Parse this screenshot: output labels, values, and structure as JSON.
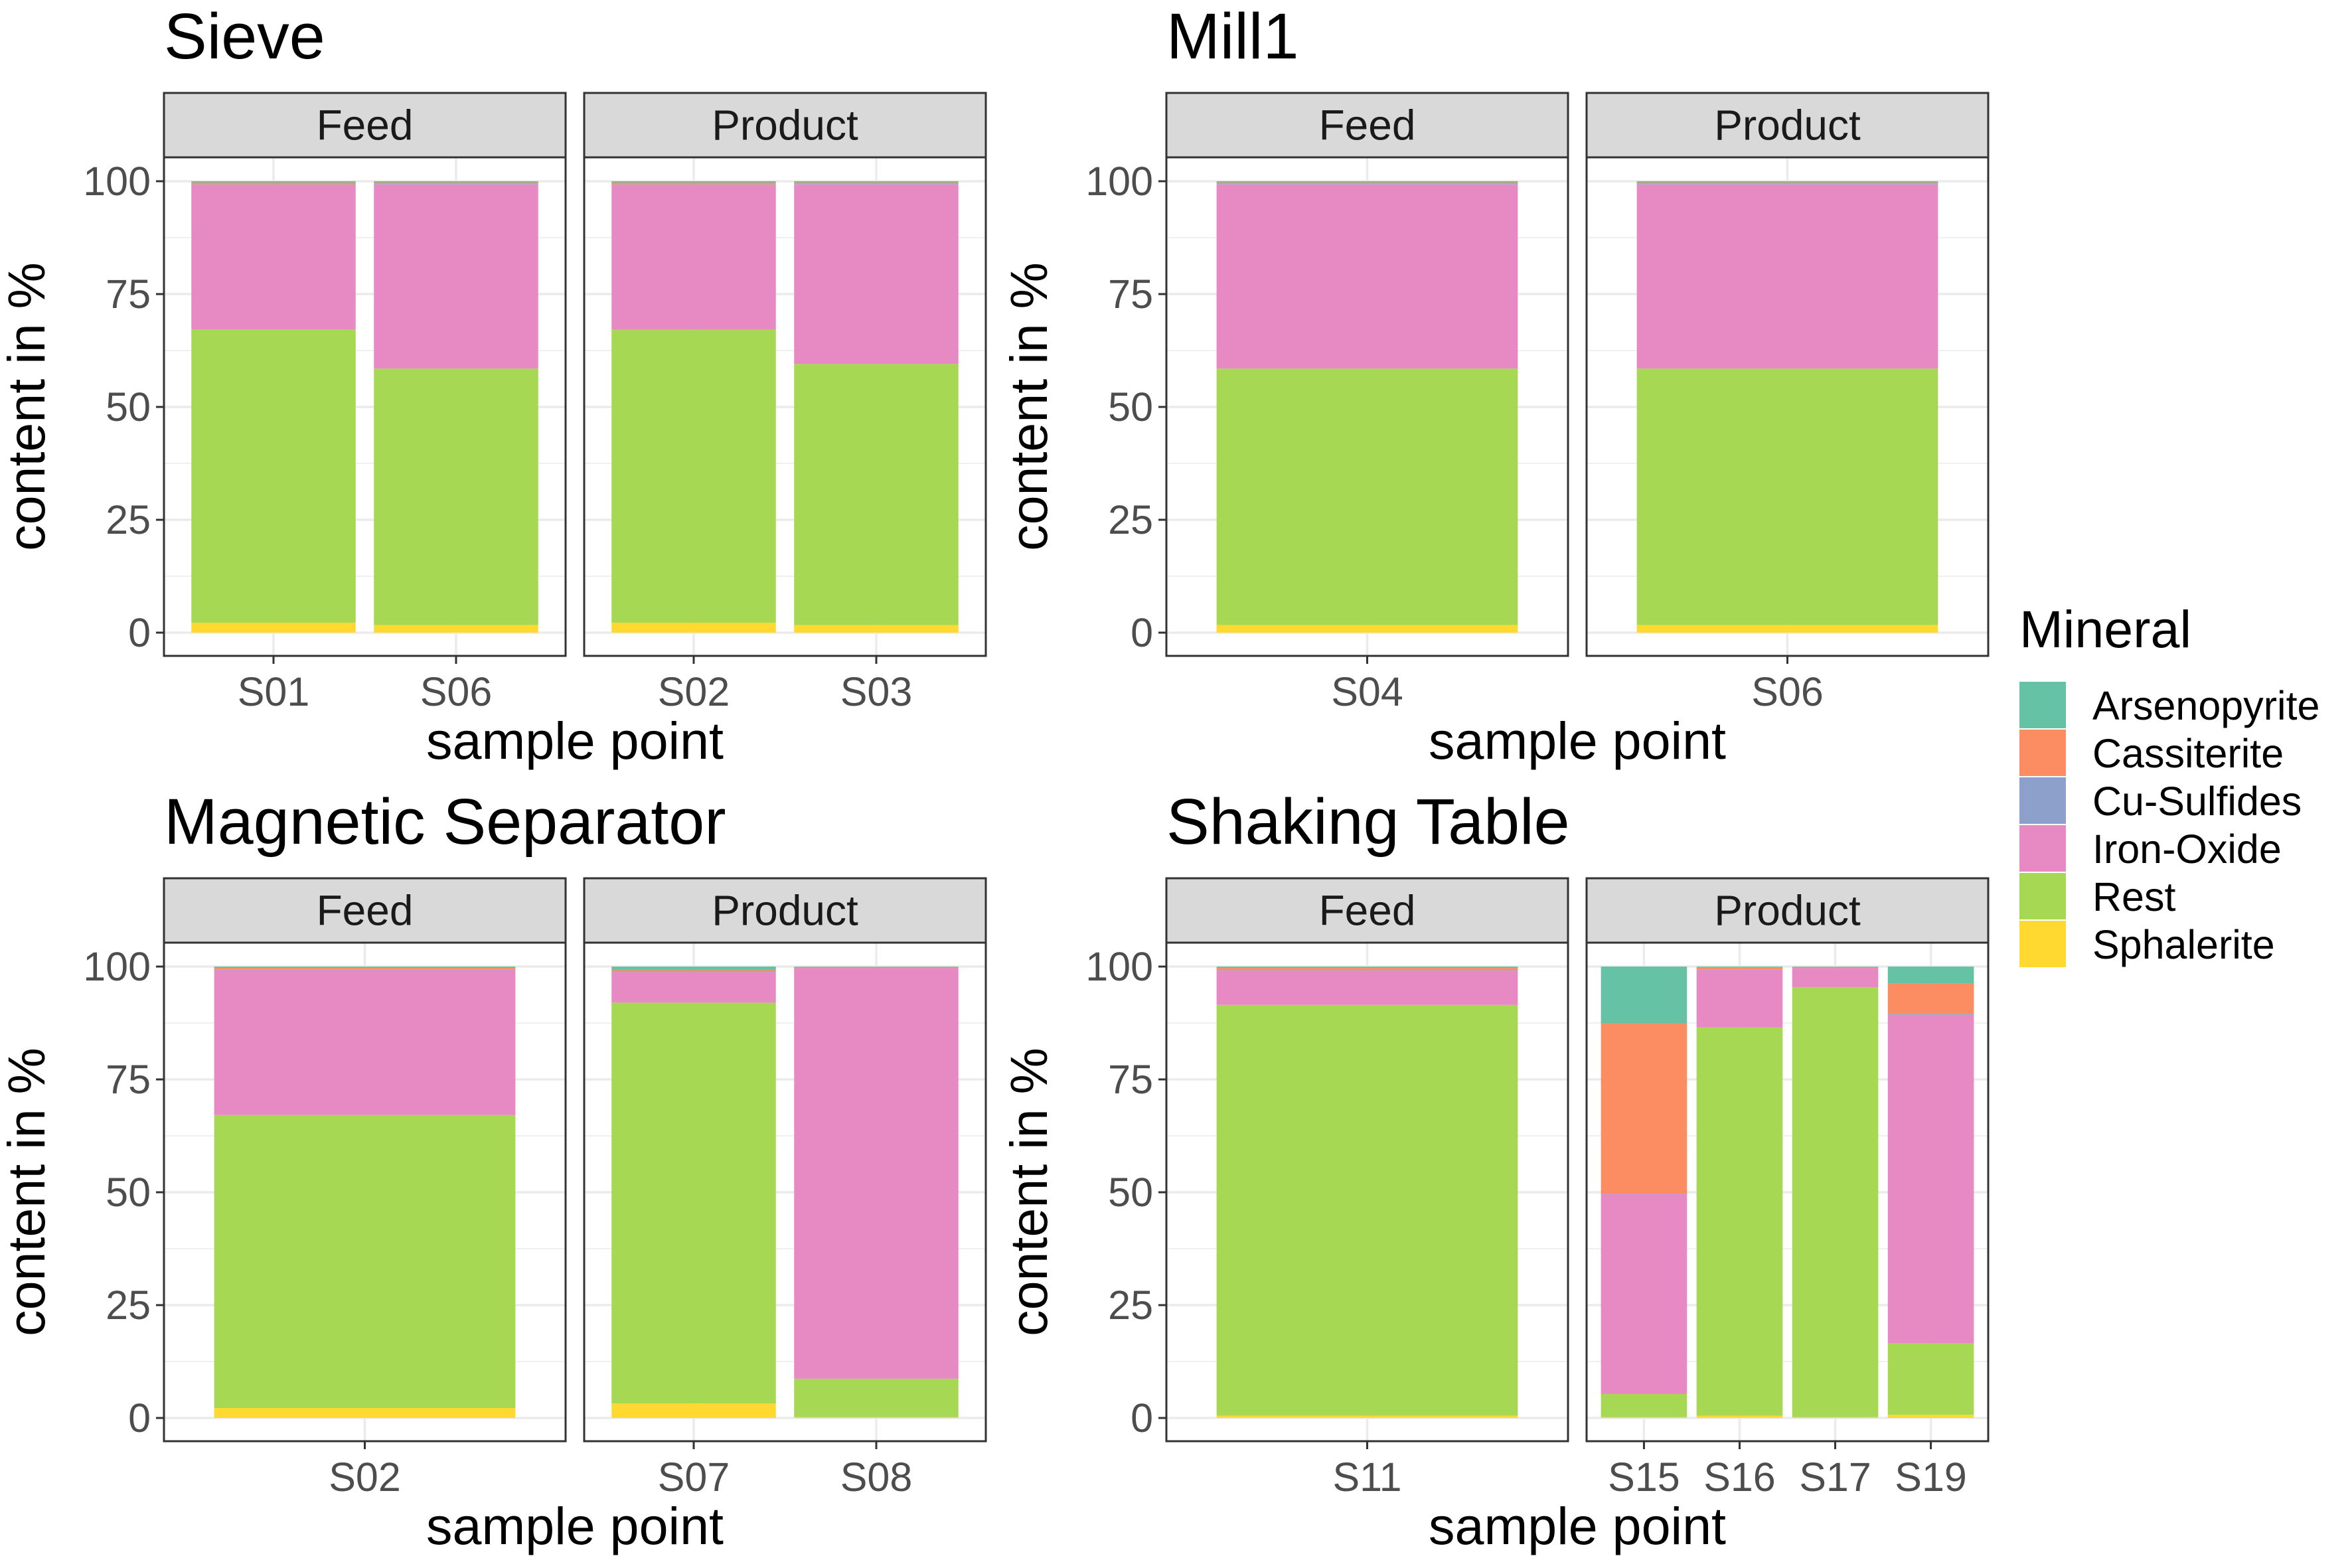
{
  "chart_data": {
    "type": "bar",
    "stacked": true,
    "ylabel": "content in %",
    "xlabel": "sample point",
    "ylim": [
      0,
      100
    ],
    "yticks": [
      0,
      25,
      50,
      75,
      100
    ],
    "grid": true,
    "legend": {
      "title": "Mineral",
      "placement": "right",
      "entries": [
        "Arsenopyrite",
        "Cassiterite",
        "Cu-Sulfides",
        "Iron-Oxide",
        "Rest",
        "Sphalerite"
      ]
    },
    "colors": {
      "Arsenopyrite": "#66c2a5",
      "Cassiterite": "#fc8d62",
      "Cu-Sulfides": "#8da0cb",
      "Iron-Oxide": "#e78ac3",
      "Rest": "#a6d854",
      "Sphalerite": "#ffd92f"
    },
    "panels": [
      {
        "title": "Sieve",
        "facets": [
          {
            "strip": "Feed",
            "samples": [
              {
                "name": "S01",
                "values": {
                  "Sphalerite": 2.2,
                  "Rest": 65.0,
                  "Iron-Oxide": 32.0,
                  "Cu-Sulfides": 0.1,
                  "Cassiterite": 0.4,
                  "Arsenopyrite": 0.3
                }
              },
              {
                "name": "S06",
                "values": {
                  "Sphalerite": 1.7,
                  "Rest": 56.8,
                  "Iron-Oxide": 40.8,
                  "Cu-Sulfides": 0.1,
                  "Cassiterite": 0.3,
                  "Arsenopyrite": 0.3
                }
              }
            ]
          },
          {
            "strip": "Product",
            "samples": [
              {
                "name": "S02",
                "values": {
                  "Sphalerite": 2.2,
                  "Rest": 64.9,
                  "Iron-Oxide": 32.1,
                  "Cu-Sulfides": 0.1,
                  "Cassiterite": 0.4,
                  "Arsenopyrite": 0.3
                }
              },
              {
                "name": "S03",
                "values": {
                  "Sphalerite": 1.7,
                  "Rest": 57.8,
                  "Iron-Oxide": 39.8,
                  "Cu-Sulfides": 0.1,
                  "Cassiterite": 0.3,
                  "Arsenopyrite": 0.3
                }
              }
            ]
          }
        ]
      },
      {
        "title": "Mill1",
        "facets": [
          {
            "strip": "Feed",
            "samples": [
              {
                "name": "S04",
                "values": {
                  "Sphalerite": 1.7,
                  "Rest": 56.8,
                  "Iron-Oxide": 40.8,
                  "Cu-Sulfides": 0.1,
                  "Cassiterite": 0.3,
                  "Arsenopyrite": 0.3
                }
              }
            ]
          },
          {
            "strip": "Product",
            "samples": [
              {
                "name": "S06",
                "values": {
                  "Sphalerite": 1.7,
                  "Rest": 56.8,
                  "Iron-Oxide": 40.8,
                  "Cu-Sulfides": 0.1,
                  "Cassiterite": 0.3,
                  "Arsenopyrite": 0.3
                }
              }
            ]
          }
        ]
      },
      {
        "title": "Magnetic Separator",
        "facets": [
          {
            "strip": "Feed",
            "samples": [
              {
                "name": "S02",
                "values": {
                  "Sphalerite": 2.2,
                  "Rest": 64.9,
                  "Iron-Oxide": 32.1,
                  "Cu-Sulfides": 0.1,
                  "Cassiterite": 0.4,
                  "Arsenopyrite": 0.3
                }
              }
            ]
          },
          {
            "strip": "Product",
            "samples": [
              {
                "name": "S07",
                "values": {
                  "Sphalerite": 3.2,
                  "Rest": 88.8,
                  "Iron-Oxide": 6.8,
                  "Cu-Sulfides": 0.1,
                  "Cassiterite": 0.3,
                  "Arsenopyrite": 0.8
                }
              },
              {
                "name": "S08",
                "values": {
                  "Sphalerite": 0.2,
                  "Rest": 8.5,
                  "Iron-Oxide": 91.0,
                  "Cu-Sulfides": 0.0,
                  "Cassiterite": 0.2,
                  "Arsenopyrite": 0.1
                }
              }
            ]
          }
        ]
      },
      {
        "title": "Shaking Table",
        "facets": [
          {
            "strip": "Feed",
            "samples": [
              {
                "name": "S11",
                "values": {
                  "Sphalerite": 0.5,
                  "Rest": 91.0,
                  "Iron-Oxide": 7.6,
                  "Cu-Sulfides": 0.1,
                  "Cassiterite": 0.5,
                  "Arsenopyrite": 0.3
                }
              }
            ]
          },
          {
            "strip": "Product",
            "samples": [
              {
                "name": "S15",
                "values": {
                  "Sphalerite": 0.2,
                  "Rest": 5.1,
                  "Iron-Oxide": 44.3,
                  "Cu-Sulfides": 0.1,
                  "Cassiterite": 37.8,
                  "Arsenopyrite": 12.5
                }
              },
              {
                "name": "S16",
                "values": {
                  "Sphalerite": 0.5,
                  "Rest": 86.0,
                  "Iron-Oxide": 12.7,
                  "Cu-Sulfides": 0.1,
                  "Cassiterite": 0.5,
                  "Arsenopyrite": 0.2
                }
              },
              {
                "name": "S17",
                "values": {
                  "Sphalerite": 0.2,
                  "Rest": 95.2,
                  "Iron-Oxide": 4.3,
                  "Cu-Sulfides": 0.0,
                  "Cassiterite": 0.2,
                  "Arsenopyrite": 0.1
                }
              },
              {
                "name": "S19",
                "values": {
                  "Sphalerite": 0.7,
                  "Rest": 15.8,
                  "Iron-Oxide": 72.8,
                  "Cu-Sulfides": 0.2,
                  "Cassiterite": 6.7,
                  "Arsenopyrite": 3.8
                }
              }
            ]
          }
        ]
      }
    ]
  }
}
